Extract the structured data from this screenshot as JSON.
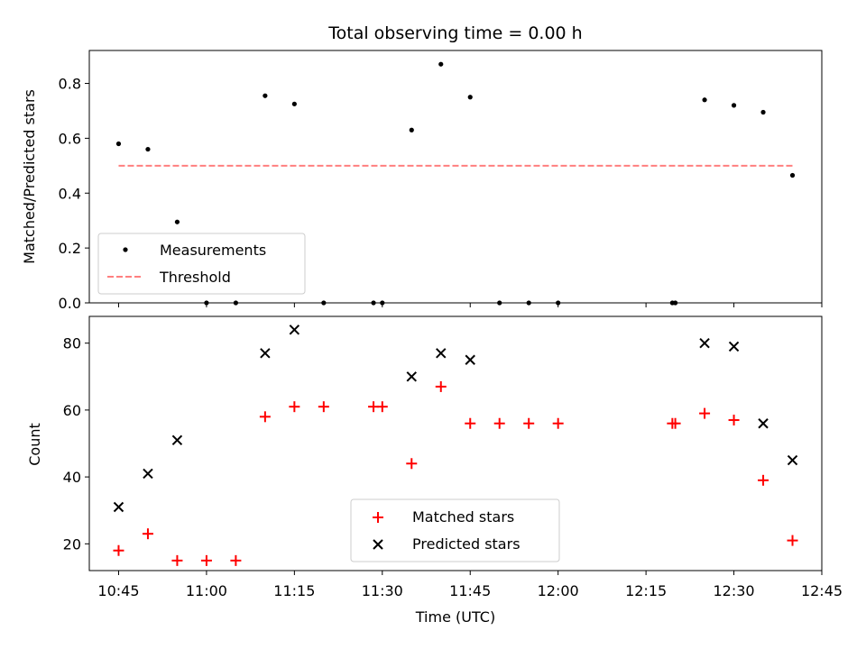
{
  "chart_data": [
    {
      "type": "scatter",
      "title": "Total observing time = 0.00 h",
      "xlabel": "",
      "ylabel": "Matched/Predicted stars",
      "ylim": [
        0,
        0.92
      ],
      "yticks": [
        "0.0",
        "0.2",
        "0.4",
        "0.6",
        "0.8"
      ],
      "ytick_values": [
        0,
        0.2,
        0.4,
        0.6,
        0.8
      ],
      "legend": [
        "Measurements",
        "Threshold"
      ],
      "legend_position": "lower-left",
      "series": [
        {
          "name": "Measurements",
          "marker": "dot",
          "color": "#000000",
          "x_minutes": [
            645,
            650,
            655,
            660,
            665,
            670,
            675,
            680,
            688.5,
            690,
            695,
            700,
            705,
            710,
            715,
            720,
            739.5,
            740,
            745,
            750,
            755,
            760
          ],
          "y": [
            0.58,
            0.56,
            0.295,
            0.0,
            0.0,
            0.755,
            0.725,
            0.0,
            0.0,
            0.0,
            0.63,
            0.87,
            0.75,
            0.0,
            0.0,
            0.0,
            0.0,
            0.0,
            0.74,
            0.72,
            0.695,
            0.465
          ]
        },
        {
          "name": "Threshold",
          "style": "dashed",
          "color": "#ff7f7f",
          "x_minutes": [
            645,
            760
          ],
          "y": [
            0.5,
            0.5
          ]
        }
      ]
    },
    {
      "type": "scatter",
      "title": "",
      "xlabel": "Time (UTC)",
      "ylabel": "Count",
      "ylim": [
        12,
        88
      ],
      "yticks": [
        "20",
        "40",
        "60",
        "80"
      ],
      "ytick_values": [
        20,
        40,
        60,
        80
      ],
      "xlim_minutes": [
        640,
        765
      ],
      "xticks": [
        "10:45",
        "11:00",
        "11:15",
        "11:30",
        "11:45",
        "12:00",
        "12:15",
        "12:30",
        "12:45"
      ],
      "xtick_values_minutes": [
        645,
        660,
        675,
        690,
        705,
        720,
        735,
        750,
        765
      ],
      "legend": [
        "Matched stars",
        "Predicted stars"
      ],
      "legend_position": "lower-center",
      "series": [
        {
          "name": "Matched stars",
          "marker": "plus",
          "color": "#ff0000",
          "x_minutes": [
            645,
            650,
            655,
            660,
            665,
            670,
            675,
            680,
            688.5,
            690,
            695,
            700,
            705,
            710,
            715,
            720,
            739.5,
            740,
            745,
            750,
            755,
            760
          ],
          "y": [
            18,
            23,
            15,
            15,
            15,
            58,
            61,
            61,
            61,
            61,
            44,
            67,
            56,
            56,
            56,
            56,
            56,
            56,
            59,
            57,
            39,
            21
          ]
        },
        {
          "name": "Predicted stars",
          "marker": "x",
          "color": "#000000",
          "x_minutes": [
            645,
            650,
            655,
            670,
            675,
            695,
            700,
            705,
            745,
            750,
            755,
            760
          ],
          "y": [
            31,
            41,
            51,
            77,
            84,
            70,
            77,
            75,
            80,
            79,
            56,
            45
          ]
        }
      ]
    }
  ]
}
